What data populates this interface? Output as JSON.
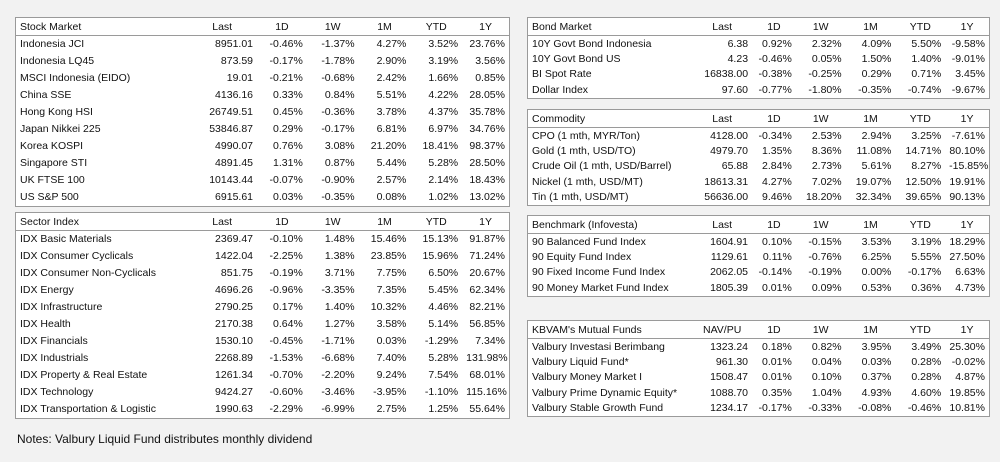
{
  "tables": [
    {
      "header": [
        "Stock Market",
        "Last",
        "1D",
        "1W",
        "1M",
        "YTD",
        "1Y"
      ],
      "rows": [
        [
          "Indonesia JCI",
          "8951.01",
          "-0.46%",
          "-1.37%",
          "4.27%",
          "3.52%",
          "23.76%"
        ],
        [
          "Indonesia LQ45",
          "873.59",
          "-0.17%",
          "-1.78%",
          "2.90%",
          "3.19%",
          "3.56%"
        ],
        [
          "MSCI Indonesia (EIDO)",
          "19.01",
          "-0.21%",
          "-0.68%",
          "2.42%",
          "1.66%",
          "0.85%"
        ],
        [
          "China SSE",
          "4136.16",
          "0.33%",
          "0.84%",
          "5.51%",
          "4.22%",
          "28.05%"
        ],
        [
          "Hong Kong HSI",
          "26749.51",
          "0.45%",
          "-0.36%",
          "3.78%",
          "4.37%",
          "35.78%"
        ],
        [
          "Japan Nikkei 225",
          "53846.87",
          "0.29%",
          "-0.17%",
          "6.81%",
          "6.97%",
          "34.76%"
        ],
        [
          "Korea KOSPI",
          "4990.07",
          "0.76%",
          "3.08%",
          "21.20%",
          "18.41%",
          "98.37%"
        ],
        [
          "Singapore STI",
          "4891.45",
          "1.31%",
          "0.87%",
          "5.44%",
          "5.28%",
          "28.50%"
        ],
        [
          "UK FTSE 100",
          "10143.44",
          "-0.07%",
          "-0.90%",
          "2.57%",
          "2.14%",
          "18.43%"
        ],
        [
          "US S&P 500",
          "6915.61",
          "0.03%",
          "-0.35%",
          "0.08%",
          "1.02%",
          "13.02%"
        ]
      ]
    },
    {
      "header": [
        "Sector Index",
        "Last",
        "1D",
        "1W",
        "1M",
        "YTD",
        "1Y"
      ],
      "rows": [
        [
          "IDX Basic Materials",
          "2369.47",
          "-0.10%",
          "1.48%",
          "15.46%",
          "15.13%",
          "91.87%"
        ],
        [
          "IDX Consumer Cyclicals",
          "1422.04",
          "-2.25%",
          "1.38%",
          "23.85%",
          "15.96%",
          "71.24%"
        ],
        [
          "IDX Consumer Non-Cyclicals",
          "851.75",
          "-0.19%",
          "3.71%",
          "7.75%",
          "6.50%",
          "20.67%"
        ],
        [
          "IDX Energy",
          "4696.26",
          "-0.96%",
          "-3.35%",
          "7.35%",
          "5.45%",
          "62.34%"
        ],
        [
          "IDX Infrastructure",
          "2790.25",
          "0.17%",
          "1.40%",
          "10.32%",
          "4.46%",
          "82.21%"
        ],
        [
          "IDX Health",
          "2170.38",
          "0.64%",
          "1.27%",
          "3.58%",
          "5.14%",
          "56.85%"
        ],
        [
          "IDX Financials",
          "1530.10",
          "-0.45%",
          "-1.71%",
          "0.03%",
          "-1.29%",
          "7.34%"
        ],
        [
          "IDX Industrials",
          "2268.89",
          "-1.53%",
          "-6.68%",
          "7.40%",
          "5.28%",
          "131.98%"
        ],
        [
          "IDX Property & Real Estate",
          "1261.34",
          "-0.70%",
          "-2.20%",
          "9.24%",
          "7.54%",
          "68.01%"
        ],
        [
          "IDX Technology",
          "9424.27",
          "-0.60%",
          "-3.46%",
          "-3.95%",
          "-1.10%",
          "115.16%"
        ],
        [
          "IDX Transportation & Logistic",
          "1990.63",
          "-2.29%",
          "-6.99%",
          "2.75%",
          "1.25%",
          "55.64%"
        ]
      ]
    },
    {
      "header": [
        "Bond Market",
        "Last",
        "1D",
        "1W",
        "1M",
        "YTD",
        "1Y"
      ],
      "rows": [
        [
          "10Y Govt Bond Indonesia",
          "6.38",
          "0.92%",
          "2.32%",
          "4.09%",
          "5.50%",
          "-9.58%"
        ],
        [
          "10Y Govt Bond US",
          "4.23",
          "-0.46%",
          "0.05%",
          "1.50%",
          "1.40%",
          "-9.01%"
        ],
        [
          "BI Spot Rate",
          "16838.00",
          "-0.38%",
          "-0.25%",
          "0.29%",
          "0.71%",
          "3.45%"
        ],
        [
          "Dollar Index",
          "97.60",
          "-0.77%",
          "-1.80%",
          "-0.35%",
          "-0.74%",
          "-9.67%"
        ]
      ]
    },
    {
      "header": [
        "Commodity",
        "Last",
        "1D",
        "1W",
        "1M",
        "YTD",
        "1Y"
      ],
      "rows": [
        [
          "CPO (1 mth, MYR/Ton)",
          "4128.00",
          "-0.34%",
          "2.53%",
          "2.94%",
          "3.25%",
          "-7.61%"
        ],
        [
          "Gold (1 mth, USD/TO)",
          "4979.70",
          "1.35%",
          "8.36%",
          "11.08%",
          "14.71%",
          "80.10%"
        ],
        [
          "Crude Oil (1 mth, USD/Barrel)",
          "65.88",
          "2.84%",
          "2.73%",
          "5.61%",
          "8.27%",
          "-15.85%"
        ],
        [
          "Nickel (1 mth, USD/MT)",
          "18613.31",
          "4.27%",
          "7.02%",
          "19.07%",
          "12.50%",
          "19.91%"
        ],
        [
          "Tin (1 mth, USD/MT)",
          "56636.00",
          "9.46%",
          "18.20%",
          "32.34%",
          "39.65%",
          "90.13%"
        ]
      ]
    },
    {
      "header": [
        "Benchmark (Infovesta)",
        "Last",
        "1D",
        "1W",
        "1M",
        "YTD",
        "1Y"
      ],
      "rows": [
        [
          "90 Balanced Fund Index",
          "1604.91",
          "0.10%",
          "-0.15%",
          "3.53%",
          "3.19%",
          "18.29%"
        ],
        [
          "90 Equity Fund Index",
          "1129.61",
          "0.11%",
          "-0.76%",
          "6.25%",
          "5.55%",
          "27.50%"
        ],
        [
          "90 Fixed Income Fund Index",
          "2062.05",
          "-0.14%",
          "-0.19%",
          "0.00%",
          "-0.17%",
          "6.63%"
        ],
        [
          "90 Money Market Fund Index",
          "1805.39",
          "0.01%",
          "0.09%",
          "0.53%",
          "0.36%",
          "4.73%"
        ]
      ]
    },
    {
      "header": [
        "KBVAM's Mutual Funds",
        "NAV/PU",
        "1D",
        "1W",
        "1M",
        "YTD",
        "1Y"
      ],
      "rows": [
        [
          "Valbury Investasi Berimbang",
          "1323.24",
          "0.18%",
          "0.82%",
          "3.95%",
          "3.49%",
          "25.30%"
        ],
        [
          "Valbury Liquid Fund*",
          "961.30",
          "0.01%",
          "0.04%",
          "0.03%",
          "0.28%",
          "-0.02%"
        ],
        [
          "Valbury Money Market I",
          "1508.47",
          "0.01%",
          "0.10%",
          "0.37%",
          "0.28%",
          "4.87%"
        ],
        [
          "Valbury Prime Dynamic Equity*",
          "1088.70",
          "0.35%",
          "1.04%",
          "4.93%",
          "4.60%",
          "19.85%"
        ],
        [
          "Valbury Stable Growth Fund",
          "1234.17",
          "-0.17%",
          "-0.33%",
          "-0.08%",
          "-0.46%",
          "10.81%"
        ]
      ]
    }
  ],
  "notes": "Notes: Valbury Liquid Fund distributes monthly dividend"
}
